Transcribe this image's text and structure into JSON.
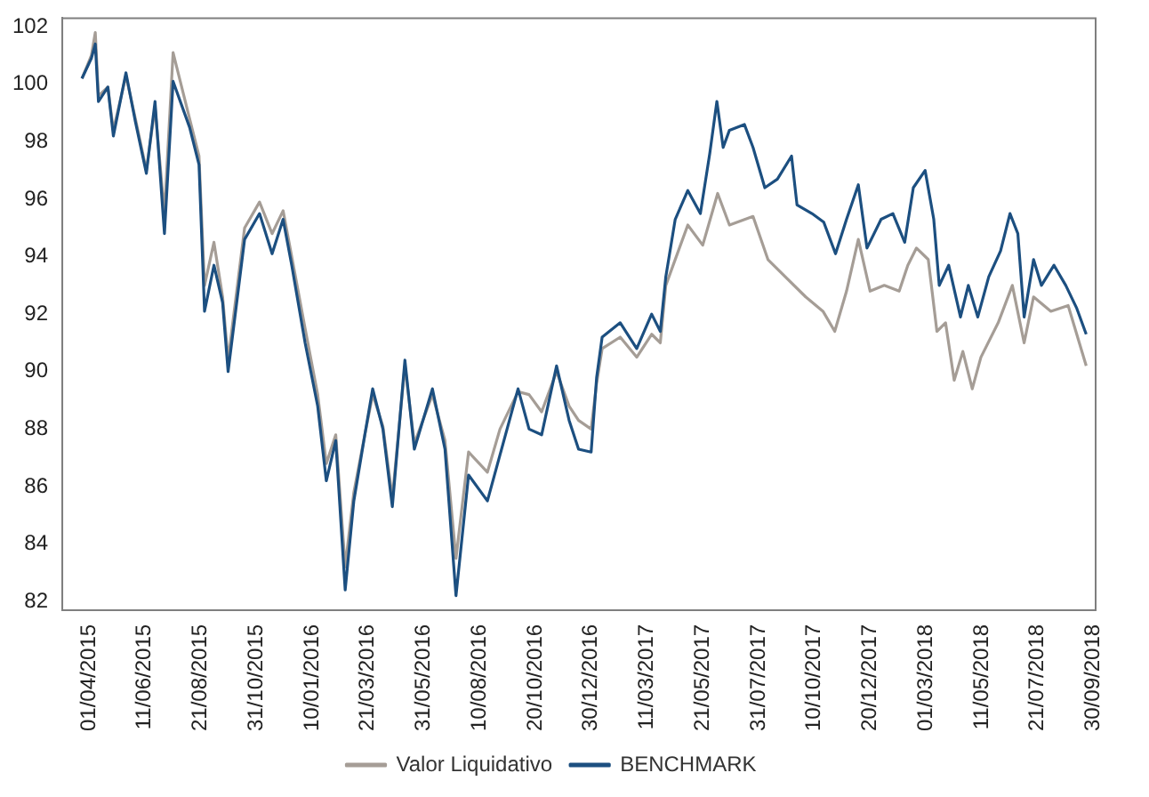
{
  "chart_data": {
    "type": "line",
    "xlim": [
      "2015-02-26",
      "2018-10-03"
    ],
    "ylim": [
      81.7,
      102.3
    ],
    "xticks": [
      {
        "value": "2015-04-01",
        "label": "01/04/2015"
      },
      {
        "value": "2015-06-11",
        "label": "11/06/2015"
      },
      {
        "value": "2015-08-21",
        "label": "21/08/2015"
      },
      {
        "value": "2015-10-31",
        "label": "31/10/2015"
      },
      {
        "value": "2016-01-10",
        "label": "10/01/2016"
      },
      {
        "value": "2016-03-21",
        "label": "21/03/2016"
      },
      {
        "value": "2016-05-31",
        "label": "31/05/2016"
      },
      {
        "value": "2016-08-10",
        "label": "10/08/2016"
      },
      {
        "value": "2016-10-20",
        "label": "20/10/2016"
      },
      {
        "value": "2016-12-30",
        "label": "30/12/2016"
      },
      {
        "value": "2017-03-11",
        "label": "11/03/2017"
      },
      {
        "value": "2017-05-21",
        "label": "21/05/2017"
      },
      {
        "value": "2017-07-31",
        "label": "31/07/2017"
      },
      {
        "value": "2017-10-10",
        "label": "10/10/2017"
      },
      {
        "value": "2017-12-20",
        "label": "20/12/2017"
      },
      {
        "value": "2018-03-01",
        "label": "01/03/2018"
      },
      {
        "value": "2018-05-11",
        "label": "11/05/2018"
      },
      {
        "value": "2018-07-21",
        "label": "21/07/2018"
      },
      {
        "value": "2018-09-30",
        "label": "30/09/2018"
      }
    ],
    "yticks": [
      82,
      84,
      86,
      88,
      90,
      92,
      94,
      96,
      98,
      100,
      102
    ],
    "grid": false,
    "legend": "bottom",
    "marker": "none",
    "line_style": "solid",
    "series": [
      {
        "name": "Valor Liquidativo",
        "color": "#a59d96",
        "x": [
          "2015-03-23",
          "2015-04-04",
          "2015-04-09",
          "2015-04-13",
          "2015-04-25",
          "2015-05-02",
          "2015-05-18",
          "2015-05-30",
          "2015-06-13",
          "2015-06-24",
          "2015-07-06",
          "2015-07-17",
          "2015-08-07",
          "2015-08-19",
          "2015-08-26",
          "2015-09-07",
          "2015-09-18",
          "2015-09-25",
          "2015-10-16",
          "2015-11-04",
          "2015-11-20",
          "2015-12-04",
          "2015-12-15",
          "2016-01-01",
          "2016-01-17",
          "2016-01-28",
          "2016-02-09",
          "2016-02-21",
          "2016-03-03",
          "2016-03-17",
          "2016-03-27",
          "2016-04-09",
          "2016-04-21",
          "2016-05-07",
          "2016-05-19",
          "2016-06-11",
          "2016-06-27",
          "2016-07-11",
          "2016-07-27",
          "2016-08-20",
          "2016-09-05",
          "2016-09-28",
          "2016-10-12",
          "2016-10-28",
          "2016-11-16",
          "2016-12-02",
          "2016-12-14",
          "2016-12-30",
          "2017-01-06",
          "2017-01-13",
          "2017-02-05",
          "2017-02-26",
          "2017-03-17",
          "2017-03-28",
          "2017-04-04",
          "2017-05-02",
          "2017-05-21",
          "2017-06-09",
          "2017-06-24",
          "2017-07-24",
          "2017-08-12",
          "2017-09-03",
          "2017-09-29",
          "2017-10-21",
          "2017-11-05",
          "2017-11-20",
          "2017-12-05",
          "2017-12-20",
          "2018-01-07",
          "2018-01-26",
          "2018-02-06",
          "2018-02-17",
          "2018-03-04",
          "2018-03-15",
          "2018-03-26",
          "2018-04-06",
          "2018-04-17",
          "2018-04-29",
          "2018-05-10",
          "2018-06-01",
          "2018-06-19",
          "2018-07-04",
          "2018-07-16",
          "2018-08-07",
          "2018-08-29",
          "2018-09-21"
        ],
        "values": [
          100.2,
          101.0,
          101.8,
          99.6,
          99.9,
          98.4,
          100.3,
          98.8,
          97.0,
          99.2,
          95.5,
          101.1,
          98.8,
          97.5,
          93.0,
          94.5,
          92.6,
          90.4,
          95.0,
          95.9,
          94.8,
          95.6,
          94.0,
          91.5,
          89.2,
          86.8,
          87.8,
          83.2,
          85.8,
          87.8,
          89.2,
          88.1,
          85.6,
          90.2,
          87.5,
          89.2,
          87.6,
          83.5,
          87.2,
          86.5,
          88.0,
          89.3,
          89.2,
          88.6,
          90.0,
          88.8,
          88.3,
          88.0,
          89.6,
          90.8,
          91.2,
          90.5,
          91.3,
          91.0,
          93.0,
          95.1,
          94.4,
          96.2,
          95.1,
          95.4,
          93.9,
          93.3,
          92.6,
          92.1,
          91.4,
          92.8,
          94.6,
          92.8,
          93.0,
          92.8,
          93.7,
          94.3,
          93.9,
          91.4,
          91.7,
          89.7,
          90.7,
          89.4,
          90.5,
          91.7,
          93.0,
          91.0,
          92.6,
          92.1,
          92.3,
          90.2
        ]
      },
      {
        "name": "BENCHMARK",
        "color": "#1c4f80",
        "x": [
          "2015-03-23",
          "2015-04-04",
          "2015-04-09",
          "2015-04-13",
          "2015-04-25",
          "2015-05-02",
          "2015-05-18",
          "2015-05-30",
          "2015-06-13",
          "2015-06-24",
          "2015-07-06",
          "2015-07-17",
          "2015-08-07",
          "2015-08-19",
          "2015-08-26",
          "2015-09-07",
          "2015-09-18",
          "2015-09-25",
          "2015-10-16",
          "2015-11-04",
          "2015-11-20",
          "2015-12-04",
          "2015-12-15",
          "2016-01-01",
          "2016-01-17",
          "2016-01-28",
          "2016-02-09",
          "2016-02-21",
          "2016-03-03",
          "2016-03-17",
          "2016-03-27",
          "2016-04-09",
          "2016-04-21",
          "2016-05-07",
          "2016-05-19",
          "2016-06-11",
          "2016-06-27",
          "2016-07-11",
          "2016-07-27",
          "2016-08-20",
          "2016-09-05",
          "2016-09-28",
          "2016-10-12",
          "2016-10-28",
          "2016-11-16",
          "2016-12-02",
          "2016-12-14",
          "2016-12-30",
          "2017-01-06",
          "2017-01-13",
          "2017-02-05",
          "2017-02-26",
          "2017-03-17",
          "2017-03-28",
          "2017-04-04",
          "2017-04-16",
          "2017-05-02",
          "2017-05-18",
          "2017-05-30",
          "2017-06-08",
          "2017-06-16",
          "2017-06-24",
          "2017-07-13",
          "2017-07-24",
          "2017-08-08",
          "2017-08-24",
          "2017-09-11",
          "2017-09-18",
          "2017-10-07",
          "2017-10-22",
          "2017-11-06",
          "2017-11-20",
          "2017-12-05",
          "2017-12-16",
          "2018-01-03",
          "2018-01-18",
          "2018-02-02",
          "2018-02-13",
          "2018-02-28",
          "2018-03-11",
          "2018-03-18",
          "2018-03-30",
          "2018-04-14",
          "2018-04-24",
          "2018-05-06",
          "2018-05-20",
          "2018-06-04",
          "2018-06-16",
          "2018-06-26",
          "2018-07-04",
          "2018-07-16",
          "2018-07-26",
          "2018-08-11",
          "2018-08-26",
          "2018-09-09",
          "2018-09-21"
        ],
        "values": [
          100.2,
          100.9,
          101.4,
          99.4,
          99.9,
          98.2,
          100.4,
          98.7,
          96.9,
          99.4,
          94.8,
          100.1,
          98.5,
          97.2,
          92.1,
          93.7,
          92.4,
          90.0,
          94.6,
          95.5,
          94.1,
          95.3,
          93.7,
          91.0,
          88.8,
          86.2,
          87.6,
          82.4,
          85.5,
          87.8,
          89.4,
          88.0,
          85.3,
          90.4,
          87.3,
          89.4,
          87.3,
          82.2,
          86.4,
          85.5,
          87.1,
          89.4,
          88.0,
          87.8,
          90.2,
          88.3,
          87.3,
          87.2,
          89.8,
          91.2,
          91.7,
          90.8,
          92.0,
          91.4,
          93.3,
          95.3,
          96.3,
          95.5,
          97.6,
          99.4,
          97.8,
          98.4,
          98.6,
          97.8,
          96.4,
          96.7,
          97.5,
          95.8,
          95.5,
          95.2,
          94.1,
          95.3,
          96.5,
          94.3,
          95.3,
          95.5,
          94.5,
          96.4,
          97.0,
          95.3,
          93.0,
          93.7,
          91.9,
          93.0,
          91.9,
          93.3,
          94.2,
          95.5,
          94.8,
          91.9,
          93.9,
          93.0,
          93.7,
          93.0,
          92.2,
          91.3
        ]
      }
    ]
  }
}
